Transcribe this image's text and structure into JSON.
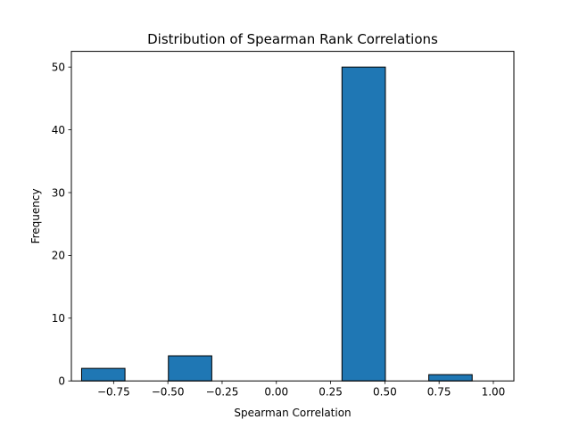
{
  "chart_data": {
    "type": "bar",
    "title": "Distribution of Spearman Rank Correlations",
    "xlabel": "Spearman Correlation",
    "ylabel": "Frequency",
    "xlim": [
      -0.9447,
      1.0947
    ],
    "ylim": [
      0,
      52.5
    ],
    "bins": [
      {
        "x0": -0.8976,
        "x1": -0.6976,
        "count": 2
      },
      {
        "x0": -0.6976,
        "x1": -0.4976,
        "count": 0
      },
      {
        "x0": -0.4976,
        "x1": -0.2976,
        "count": 4
      },
      {
        "x0": -0.2976,
        "x1": -0.0976,
        "count": 0
      },
      {
        "x0": -0.0976,
        "x1": 0.1024,
        "count": 0
      },
      {
        "x0": 0.1024,
        "x1": 0.3024,
        "count": 0
      },
      {
        "x0": 0.3024,
        "x1": 0.5024,
        "count": 50
      },
      {
        "x0": 0.5024,
        "x1": 0.7024,
        "count": 0
      },
      {
        "x0": 0.7024,
        "x1": 0.9024,
        "count": 1
      },
      {
        "x0": 0.9024,
        "x1": 1.1024,
        "count": 0
      }
    ],
    "xticks": [
      -0.75,
      -0.5,
      -0.25,
      0.0,
      0.25,
      0.5,
      0.75,
      1.0
    ],
    "xtick_labels": [
      "−0.75",
      "−0.50",
      "−0.25",
      "0.00",
      "0.25",
      "0.50",
      "0.75",
      "1.00"
    ],
    "yticks": [
      0,
      10,
      20,
      30,
      40,
      50
    ],
    "ytick_labels": [
      "0",
      "10",
      "20",
      "30",
      "40",
      "50"
    ],
    "grid": false,
    "colors": {
      "bar_fill": "#1f77b4",
      "bar_edge": "#000000",
      "axes": "#000000",
      "background": "#ffffff"
    }
  }
}
